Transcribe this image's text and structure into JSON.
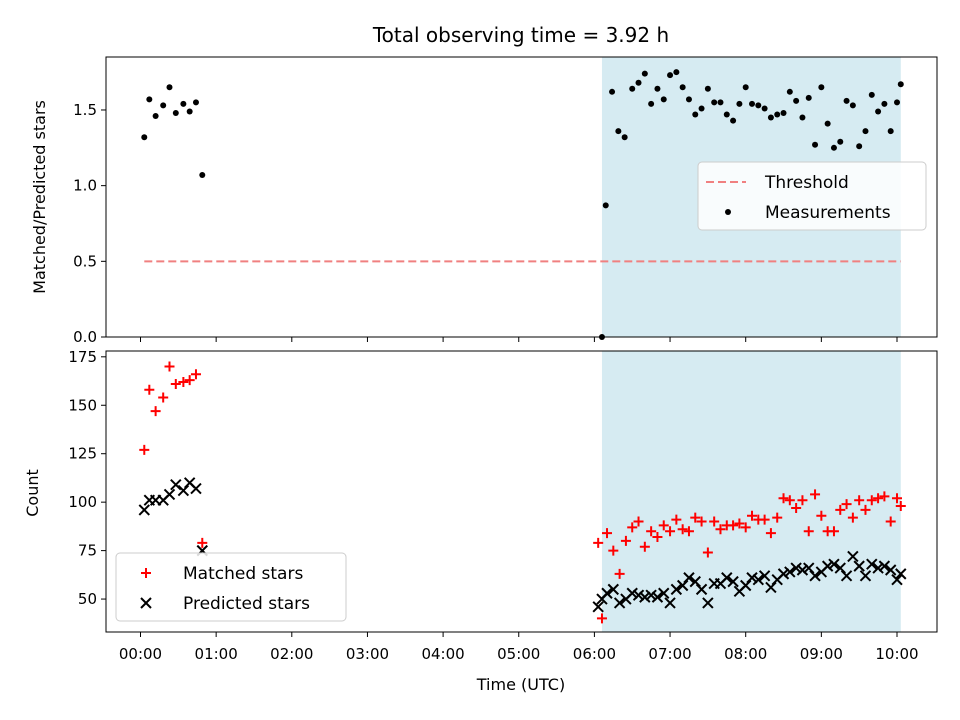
{
  "chart_data": [
    {
      "type": "scatter",
      "title": "Total observing time = 3.92 h",
      "ylabel": "Matched/Predicted stars",
      "ylim": [
        0,
        1.85
      ],
      "yticks": [
        "0.0",
        "0.5",
        "1.0",
        "1.5"
      ],
      "ytick_values": [
        0,
        0.5,
        1.0,
        1.5
      ],
      "shaded_span": [
        "06:06",
        "10:03"
      ],
      "shade_color": "#add8e6",
      "legend": [
        "Threshold",
        "Measurements"
      ],
      "legend_placement": "center-right",
      "series": [
        {
          "name": "Threshold",
          "style": "dashed-line",
          "color": "#f08080",
          "x": [
            "00:03",
            "10:03"
          ],
          "values": [
            0.5,
            0.5
          ]
        },
        {
          "name": "Measurements",
          "style": "dot",
          "color": "#000000",
          "x": [
            "00:03",
            "00:07",
            "00:12",
            "00:18",
            "00:23",
            "00:28",
            "00:34",
            "00:39",
            "00:44",
            "00:49",
            "06:06",
            "06:09",
            "06:14",
            "06:19",
            "06:24",
            "06:30",
            "06:35",
            "06:40",
            "06:45",
            "06:50",
            "06:55",
            "07:00",
            "07:05",
            "07:10",
            "07:15",
            "07:20",
            "07:25",
            "07:30",
            "07:35",
            "07:40",
            "07:45",
            "07:50",
            "07:55",
            "08:00",
            "08:05",
            "08:10",
            "08:15",
            "08:20",
            "08:25",
            "08:30",
            "08:35",
            "08:40",
            "08:45",
            "08:50",
            "08:55",
            "09:00",
            "09:05",
            "09:10",
            "09:15",
            "09:20",
            "09:25",
            "09:30",
            "09:35",
            "09:40",
            "09:45",
            "09:50",
            "09:55",
            "10:00",
            "10:03"
          ],
          "values": [
            1.32,
            1.57,
            1.46,
            1.53,
            1.65,
            1.48,
            1.54,
            1.49,
            1.55,
            1.07,
            0.0,
            0.87,
            1.62,
            1.36,
            1.32,
            1.64,
            1.68,
            1.74,
            1.54,
            1.64,
            1.57,
            1.73,
            1.75,
            1.65,
            1.57,
            1.47,
            1.51,
            1.64,
            1.55,
            1.55,
            1.47,
            1.43,
            1.54,
            1.65,
            1.54,
            1.53,
            1.51,
            1.45,
            1.47,
            1.48,
            1.62,
            1.56,
            1.45,
            1.58,
            1.27,
            1.65,
            1.41,
            1.25,
            1.29,
            1.56,
            1.53,
            1.26,
            1.36,
            1.6,
            1.49,
            1.54,
            1.36,
            1.55,
            1.67
          ]
        }
      ]
    },
    {
      "type": "scatter",
      "xlabel": "Time (UTC)",
      "ylabel": "Count",
      "ylim": [
        33,
        178
      ],
      "yticks": [
        "50",
        "75",
        "100",
        "125",
        "150",
        "175"
      ],
      "ytick_values": [
        50,
        75,
        100,
        125,
        150,
        175
      ],
      "xticks": [
        "00:00",
        "01:00",
        "02:00",
        "03:00",
        "04:00",
        "05:00",
        "06:00",
        "07:00",
        "08:00",
        "09:00",
        "10:00"
      ],
      "shaded_span": [
        "06:06",
        "10:03"
      ],
      "shade_color": "#add8e6",
      "legend": [
        "Matched stars",
        "Predicted stars"
      ],
      "legend_placement": "lower-left",
      "series": [
        {
          "name": "Matched stars",
          "style": "plus",
          "color": "#ff0000",
          "x": [
            "00:03",
            "00:07",
            "00:12",
            "00:18",
            "00:23",
            "00:28",
            "00:34",
            "00:39",
            "00:44",
            "00:49",
            "06:03",
            "06:06",
            "06:10",
            "06:15",
            "06:20",
            "06:25",
            "06:30",
            "06:35",
            "06:40",
            "06:45",
            "06:50",
            "06:55",
            "07:00",
            "07:05",
            "07:10",
            "07:15",
            "07:20",
            "07:25",
            "07:30",
            "07:35",
            "07:40",
            "07:45",
            "07:50",
            "07:55",
            "08:00",
            "08:05",
            "08:10",
            "08:15",
            "08:20",
            "08:25",
            "08:30",
            "08:35",
            "08:40",
            "08:45",
            "08:50",
            "08:55",
            "09:00",
            "09:05",
            "09:10",
            "09:15",
            "09:20",
            "09:25",
            "09:30",
            "09:35",
            "09:40",
            "09:45",
            "09:50",
            "09:55",
            "10:00",
            "10:03"
          ],
          "values": [
            127,
            158,
            147,
            154,
            170,
            161,
            162,
            163,
            166,
            79,
            79,
            40,
            84,
            75,
            63,
            80,
            87,
            90,
            77,
            85,
            82,
            88,
            85,
            91,
            86,
            85,
            92,
            90,
            74,
            90,
            86,
            88,
            88,
            89,
            87,
            93,
            91,
            91,
            84,
            92,
            102,
            101,
            97,
            101,
            85,
            104,
            93,
            85,
            85,
            96,
            99,
            92,
            101,
            96,
            101,
            102,
            103,
            90,
            102,
            98
          ]
        },
        {
          "name": "Predicted stars",
          "style": "cross",
          "color": "#000000",
          "x": [
            "00:03",
            "00:07",
            "00:12",
            "00:18",
            "00:23",
            "00:28",
            "00:34",
            "00:39",
            "00:44",
            "00:49",
            "06:03",
            "06:06",
            "06:10",
            "06:15",
            "06:20",
            "06:25",
            "06:30",
            "06:35",
            "06:40",
            "06:45",
            "06:50",
            "06:55",
            "07:00",
            "07:05",
            "07:10",
            "07:15",
            "07:20",
            "07:25",
            "07:30",
            "07:35",
            "07:40",
            "07:45",
            "07:50",
            "07:55",
            "08:00",
            "08:05",
            "08:10",
            "08:15",
            "08:20",
            "08:25",
            "08:30",
            "08:35",
            "08:40",
            "08:45",
            "08:50",
            "08:55",
            "09:00",
            "09:05",
            "09:10",
            "09:15",
            "09:20",
            "09:25",
            "09:30",
            "09:35",
            "09:40",
            "09:45",
            "09:50",
            "09:55",
            "10:00",
            "10:03"
          ],
          "values": [
            96,
            101,
            101,
            101,
            104,
            109,
            106,
            110,
            107,
            75,
            46,
            50,
            53,
            55,
            48,
            50,
            53,
            52,
            51,
            52,
            51,
            53,
            48,
            55,
            57,
            61,
            59,
            55,
            48,
            58,
            58,
            61,
            59,
            54,
            57,
            61,
            60,
            62,
            56,
            60,
            63,
            64,
            66,
            65,
            66,
            62,
            64,
            67,
            68,
            66,
            62,
            72,
            67,
            62,
            68,
            66,
            67,
            65,
            60,
            63
          ]
        }
      ]
    }
  ]
}
